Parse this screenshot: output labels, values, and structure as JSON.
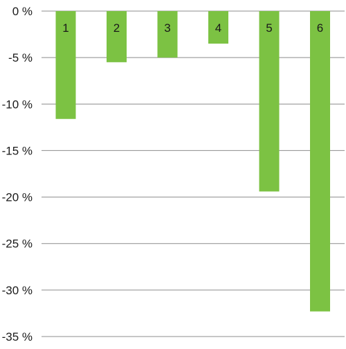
{
  "chart_data": {
    "type": "bar",
    "title": "",
    "xlabel": "",
    "ylabel": "",
    "categories": [
      "1",
      "2",
      "3",
      "4",
      "5",
      "6"
    ],
    "values": [
      -11.6,
      -5.5,
      -5.0,
      -3.5,
      -19.4,
      -32.3
    ],
    "ylim": [
      -35,
      0
    ],
    "yticks": [
      0,
      -5,
      -10,
      -15,
      -20,
      -25,
      -30,
      -35
    ],
    "ytick_labels": [
      "0 %",
      "-5 %",
      "-10 %",
      "-15 %",
      "-20 %",
      "-25 %",
      "-30 %",
      "-35 %"
    ],
    "grid": true,
    "legend": "none",
    "colors": {
      "bar": "#7cc243",
      "grid": "#8c8c8c",
      "text": "#1a1a1a"
    }
  }
}
